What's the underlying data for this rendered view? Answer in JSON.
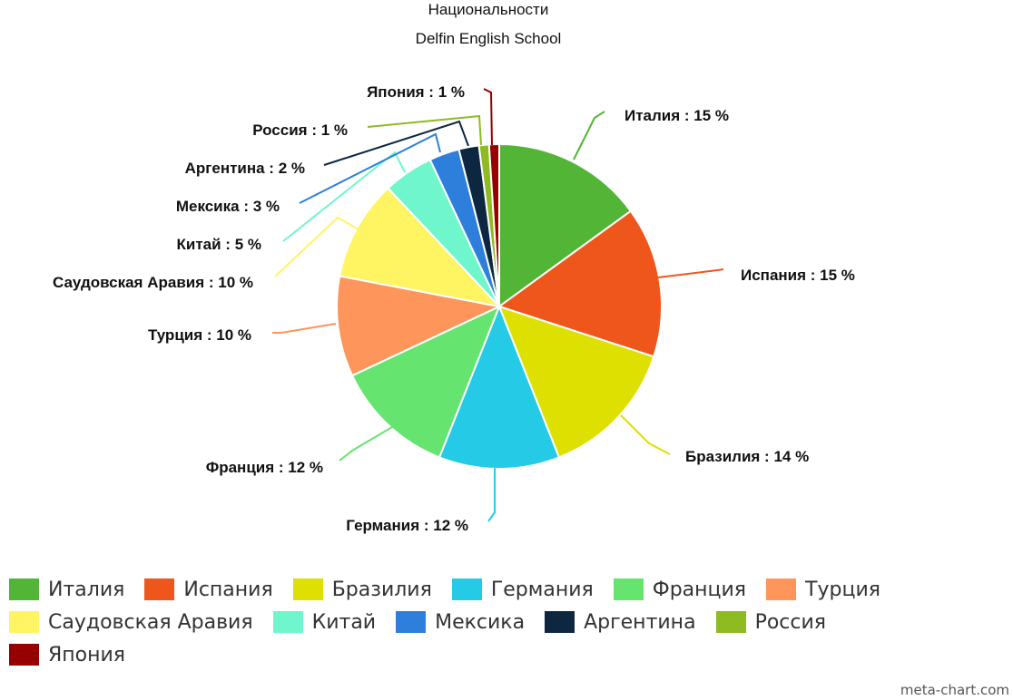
{
  "chart_data": {
    "type": "pie",
    "title": "Национальности",
    "subtitle": "Delfin English School",
    "slices": [
      {
        "name": "Италия",
        "value": 15,
        "label": "Италия : 15 %",
        "color": "#52b536"
      },
      {
        "name": "Испания",
        "value": 15,
        "label": "Испания : 15 %",
        "color": "#ee561c"
      },
      {
        "name": "Бразилия",
        "value": 14,
        "label": "Бразилия : 14 %",
        "color": "#dde001"
      },
      {
        "name": "Германия",
        "value": 12,
        "label": "Германия : 12 %",
        "color": "#25cbe6"
      },
      {
        "name": "Франция",
        "value": 12,
        "label": "Франция : 12 %",
        "color": "#65e46f"
      },
      {
        "name": "Турция",
        "value": 10,
        "label": "Турция : 10 %",
        "color": "#fe955a"
      },
      {
        "name": "Саудовская Аравия",
        "value": 10,
        "label": "Саудовская Аравия : 10 %",
        "color": "#fff462"
      },
      {
        "name": "Китай",
        "value": 5,
        "label": "Китай : 5 %",
        "color": "#6ff6cc"
      },
      {
        "name": "Мексика",
        "value": 3,
        "label": "Мексика : 3 %",
        "color": "#2e7fdb"
      },
      {
        "name": "Аргентина",
        "value": 2,
        "label": "Аргентина : 2 %",
        "color": "#0e2740"
      },
      {
        "name": "Россия",
        "value": 1,
        "label": "Россия : 1 %",
        "color": "#8eba22"
      },
      {
        "name": "Япония",
        "value": 1,
        "label": "Япония : 1 %",
        "color": "#960000"
      }
    ],
    "legend_position": "bottom"
  },
  "watermark": "meta-chart.com"
}
